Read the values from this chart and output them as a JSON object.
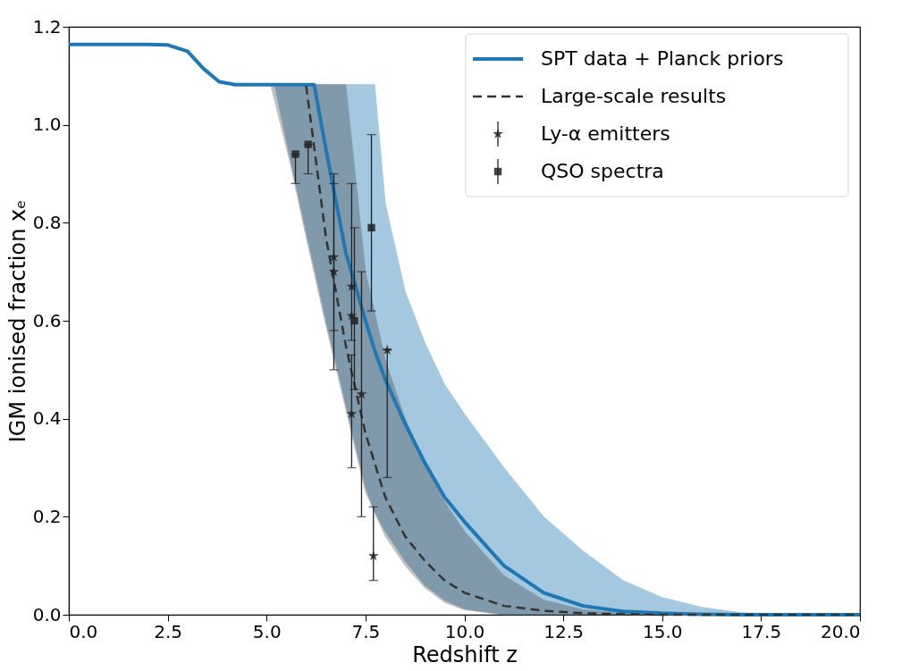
{
  "chart_data": {
    "type": "line",
    "xlabel": "Redshift z",
    "ylabel": "IGM ionised fraction xₑ",
    "xlim": [
      0,
      20
    ],
    "ylim": [
      0,
      1.2
    ],
    "xticks": [
      {
        "value": 0,
        "label": "0.0"
      },
      {
        "value": 2.5,
        "label": "2.5"
      },
      {
        "value": 5,
        "label": "5.0"
      },
      {
        "value": 7.5,
        "label": "7.5"
      },
      {
        "value": 10,
        "label": "10.0"
      },
      {
        "value": 12.5,
        "label": "12.5"
      },
      {
        "value": 15,
        "label": "15.0"
      },
      {
        "value": 17.5,
        "label": "17.5"
      },
      {
        "value": 20,
        "label": "20.0"
      }
    ],
    "yticks": [
      {
        "value": 0,
        "label": "0.0"
      },
      {
        "value": 0.2,
        "label": "0.2"
      },
      {
        "value": 0.4,
        "label": "0.4"
      },
      {
        "value": 0.6,
        "label": "0.6"
      },
      {
        "value": 0.8,
        "label": "0.8"
      },
      {
        "value": 1.0,
        "label": "1.0"
      },
      {
        "value": 1.2,
        "label": "1.2"
      }
    ],
    "grid": false,
    "legend": "top right",
    "series": [
      {
        "name": "SPT data + Planck priors",
        "color": "#1f77b4",
        "line_style": "solid",
        "x": [
          0,
          1,
          2,
          2.5,
          3,
          3.4,
          3.8,
          4.2,
          5.2,
          5.6,
          6,
          6.2,
          6.5,
          7,
          7.5,
          7.73,
          8,
          8.5,
          9,
          9.5,
          10,
          11,
          12,
          13,
          14,
          15,
          16,
          17,
          18,
          20
        ],
        "values": [
          1.164,
          1.164,
          1.164,
          1.163,
          1.15,
          1.115,
          1.088,
          1.082,
          1.082,
          1.082,
          1.082,
          1.082,
          0.95,
          0.74,
          0.6,
          0.54,
          0.48,
          0.39,
          0.31,
          0.24,
          0.19,
          0.1,
          0.045,
          0.018,
          0.007,
          0.003,
          0.001,
          0,
          0,
          0
        ],
        "lower": [
          null,
          null,
          null,
          null,
          null,
          null,
          null,
          null,
          1.082,
          0.93,
          0.78,
          0.71,
          0.6,
          0.43,
          0.26,
          0.21,
          0.17,
          0.11,
          0.06,
          0.03,
          0.012,
          0,
          0,
          0,
          0,
          0,
          0,
          0,
          0,
          0
        ],
        "upper": [
          null,
          null,
          null,
          null,
          null,
          null,
          null,
          null,
          1.082,
          1.082,
          1.082,
          1.082,
          1.082,
          1.082,
          1.082,
          1.082,
          0.84,
          0.66,
          0.555,
          0.47,
          0.41,
          0.3,
          0.2,
          0.13,
          0.07,
          0.035,
          0.015,
          0.004,
          0.001,
          0
        ]
      },
      {
        "name": "Large-scale results",
        "color": "#333333",
        "line_style": "dashed",
        "x": [
          5.1,
          5.6,
          6,
          6.5,
          7,
          7.5,
          8,
          8.5,
          9,
          9.5,
          10,
          11,
          12,
          13,
          14,
          15,
          17,
          20
        ],
        "values": [
          null,
          null,
          1.08,
          0.77,
          0.55,
          0.37,
          0.24,
          0.16,
          0.11,
          0.07,
          0.045,
          0.018,
          0.008,
          0.003,
          0.001,
          0,
          0,
          0
        ],
        "lower": [
          1.082,
          0.92,
          0.77,
          0.59,
          0.42,
          0.25,
          0.16,
          0.1,
          0.055,
          0.025,
          0.01,
          0,
          0,
          0,
          0,
          0,
          0,
          0
        ],
        "upper": [
          1.082,
          1.082,
          1.082,
          1.082,
          1.082,
          0.7,
          0.52,
          0.4,
          0.31,
          0.23,
          0.17,
          0.08,
          0.03,
          0.01,
          0.003,
          0,
          0,
          0
        ]
      },
      {
        "name": "Ly-α emitters",
        "type": "scatter",
        "color": "#222222",
        "marker": "star",
        "x": [
          6.7,
          6.7,
          7.15,
          7.15,
          7.15,
          7.4,
          7.7,
          8.05
        ],
        "values": [
          0.73,
          0.7,
          0.67,
          0.61,
          0.41,
          0.45,
          0.12,
          0.54
        ],
        "errors": [
          [
            0.58,
            0.9
          ],
          [
            0.5,
            0.88
          ],
          [
            0.56,
            0.88
          ],
          null,
          [
            0.3,
            0.53
          ],
          [
            0.2,
            0.7
          ],
          [
            0.07,
            0.22
          ],
          [
            0.28,
            0.54
          ]
        ]
      },
      {
        "name": "QSO spectra",
        "type": "scatter",
        "color": "#222222",
        "marker": "square",
        "x": [
          5.73,
          6.05,
          7.22,
          7.65
        ],
        "values": [
          0.94,
          0.96,
          0.6,
          0.79
        ],
        "errors": [
          [
            0.88,
            0.94
          ],
          [
            0.9,
            0.96
          ],
          [
            0.46,
            0.79
          ],
          [
            0.62,
            0.98
          ]
        ]
      }
    ]
  }
}
